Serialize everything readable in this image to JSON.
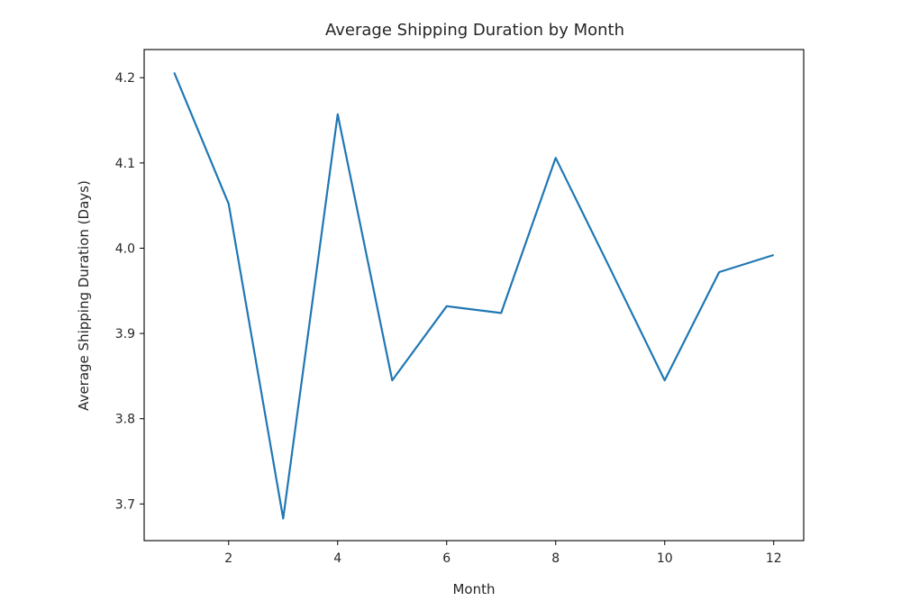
{
  "chart_data": {
    "type": "line",
    "title": "Average Shipping Duration by Month",
    "xlabel": "Month",
    "ylabel": "Average Shipping Duration (Days)",
    "x": [
      1,
      2,
      3,
      4,
      5,
      6,
      7,
      8,
      9,
      10,
      11,
      12
    ],
    "series": [
      {
        "name": "Average Shipping Duration",
        "color": "#1f77b4",
        "values": [
          4.206,
          4.052,
          3.683,
          4.157,
          3.845,
          3.932,
          3.924,
          4.106,
          3.976,
          3.845,
          3.972,
          3.992
        ]
      }
    ],
    "xticks": [
      2,
      4,
      6,
      8,
      10,
      12
    ],
    "yticks": [
      3.7,
      3.8,
      3.9,
      4.0,
      4.1,
      4.2
    ],
    "ytick_labels": [
      "3.7",
      "3.8",
      "3.9",
      "4.0",
      "4.1",
      "4.2"
    ],
    "xlim": [
      0.45,
      12.55
    ],
    "ylim": [
      3.657,
      4.233
    ],
    "grid": false,
    "legend": null
  }
}
